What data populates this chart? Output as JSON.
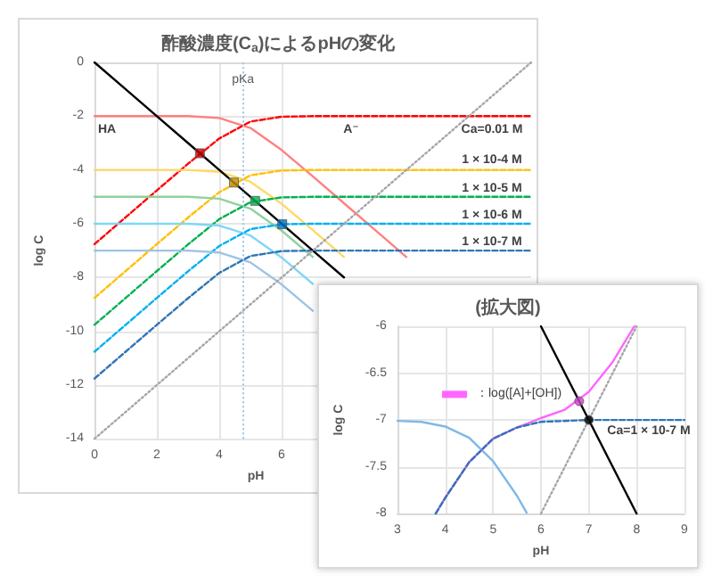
{
  "chart_data": [
    {
      "type": "line",
      "title": "酢酸濃度(C$_{a}$)によるpHの変化",
      "xlabel": "pH",
      "ylabel": "log C",
      "x": [
        0,
        1,
        2,
        3,
        4,
        5,
        6,
        7,
        8,
        9,
        10,
        11,
        12,
        13,
        14
      ],
      "xlim": [
        0,
        14
      ],
      "xticks": [
        0,
        2,
        4,
        6
      ],
      "ylim": [
        -14,
        0
      ],
      "yticks": [
        -14,
        -12,
        -10,
        -8,
        -6,
        -4,
        -2,
        0
      ],
      "grid": true,
      "legend": false,
      "marker": "none",
      "series": [
        {
          "color": "#ff8080",
          "line_style": "solid",
          "values": [
            -2,
            -2,
            -2,
            -2,
            -2.07,
            -2.44,
            -3.26,
            -4.24,
            -5.24,
            -6.24,
            -7.24,
            null,
            null,
            null,
            null
          ]
        },
        {
          "color": "#ff0000",
          "line_style": "dashed",
          "values": [
            -6.76,
            -5.76,
            -4.76,
            -3.77,
            -2.83,
            -2.2,
            -2.02,
            -2,
            -2,
            -2,
            -2,
            -2,
            -2,
            -2,
            -2
          ]
        },
        {
          "color": "#ffd966",
          "line_style": "solid",
          "values": [
            -4,
            -4,
            -4,
            -4,
            -4.07,
            -4.44,
            -5.26,
            -6.24,
            -7.24,
            null,
            null,
            null,
            null,
            null,
            null
          ]
        },
        {
          "color": "#ffc000",
          "line_style": "dashed",
          "values": [
            -8.76,
            -7.76,
            -6.76,
            -5.77,
            -4.83,
            -4.2,
            -4.02,
            -4,
            -4,
            -4,
            -4,
            -4,
            -4,
            -4,
            -4
          ]
        },
        {
          "color": "#8fd19e",
          "line_style": "solid",
          "values": [
            -5,
            -5,
            -5,
            -5,
            -5.07,
            -5.44,
            -6.26,
            -7.24,
            null,
            null,
            null,
            null,
            null,
            null,
            null
          ]
        },
        {
          "color": "#00b050",
          "line_style": "dashed",
          "values": [
            -9.76,
            -8.76,
            -7.76,
            -6.77,
            -5.83,
            -5.2,
            -5.02,
            -5,
            -5,
            -5,
            -5,
            -5,
            -5,
            -5,
            -5
          ]
        },
        {
          "color": "#7fd7f7",
          "line_style": "solid",
          "values": [
            -6,
            -6,
            -6,
            -6,
            -6.07,
            -6.44,
            -7.26,
            -8.24,
            null,
            null,
            null,
            null,
            null,
            null,
            null
          ]
        },
        {
          "color": "#00b0f0",
          "line_style": "dashed",
          "values": [
            -10.76,
            -9.76,
            -8.76,
            -7.77,
            -6.83,
            -6.2,
            -6.02,
            -6,
            -6,
            -6,
            -6,
            -6,
            -6,
            -6,
            -6
          ]
        },
        {
          "color": "#9dc3e6",
          "line_style": "solid",
          "values": [
            -7,
            -7,
            -7,
            -7,
            -7.07,
            -7.44,
            -8.26,
            -9.24,
            null,
            null,
            null,
            null,
            null,
            null,
            null
          ]
        },
        {
          "color": "#2e75b6",
          "line_style": "dashed",
          "values": [
            -11.76,
            -10.76,
            -9.76,
            -8.77,
            -7.83,
            -7.2,
            -7.02,
            -7,
            -7,
            -7,
            -7,
            -7,
            -7,
            -7,
            -7
          ]
        },
        {
          "color": "#000000",
          "line_style": "solid",
          "values": [
            0,
            -1,
            -2,
            -3,
            -4,
            -5,
            -6,
            -7,
            -8,
            null,
            null,
            null,
            null,
            null,
            null
          ]
        },
        {
          "color": "#a6a6a6",
          "line_style": "dotted",
          "values": [
            -14,
            -13,
            -12,
            -11,
            -10,
            -9,
            -8,
            -7,
            -6,
            -5,
            -4,
            -3,
            -2,
            -1,
            0
          ]
        },
        {
          "type": "scatter",
          "marker": "square",
          "x": [
            3.38,
            4.47,
            5.15,
            6.02
          ],
          "values": [
            -3.38,
            -4.47,
            -5.15,
            -6.02
          ],
          "colors": [
            "#c00000",
            "#bf9000",
            "#00b050",
            "#0070c0"
          ]
        }
      ],
      "ref_lines": [
        {
          "axis": "x",
          "value": 4.76,
          "label": "pKa",
          "color": "#9dc3e6",
          "line_style": "dotted"
        }
      ],
      "annotations": [
        "HA",
        "A⁻",
        "Ca=0.01 M",
        "1 × 10-4 M",
        "1 × 10-5 M",
        "1 × 10-6 M",
        "1 × 10-7 M"
      ]
    },
    {
      "type": "line",
      "title": "(拡大図)",
      "xlabel": "pH",
      "ylabel": "log C",
      "xlim": [
        3,
        9
      ],
      "xticks": [
        3,
        4,
        5,
        6,
        7,
        8,
        9
      ],
      "ylim": [
        -8,
        -6
      ],
      "yticks": [
        -8,
        -7.5,
        -7,
        -6.5,
        -6
      ],
      "grid": true,
      "legend": "left",
      "marker": "none",
      "series": [
        {
          "color": "#7fb8e6",
          "line_style": "solid",
          "x": [
            3,
            3.5,
            4,
            4.5,
            5,
            5.5,
            5.7
          ],
          "values": [
            -7.01,
            -7.02,
            -7.07,
            -7.19,
            -7.44,
            -7.81,
            -7.99
          ]
        },
        {
          "name": "：log([A]+[OH])",
          "color": "#ff66ff",
          "line_style": "solid",
          "x": [
            3.8,
            4,
            4.5,
            5,
            5.5,
            6,
            6.5,
            7,
            7.5,
            7.95
          ],
          "values": [
            -8,
            -7.83,
            -7.45,
            -7.2,
            -7.08,
            -6.98,
            -6.89,
            -6.7,
            -6.38,
            -6
          ]
        },
        {
          "color": "#2e75b6",
          "line_style": "dashed",
          "x": [
            3.8,
            4,
            4.5,
            5,
            5.5,
            6,
            7,
            8,
            9
          ],
          "values": [
            -8,
            -7.83,
            -7.45,
            -7.2,
            -7.08,
            -7.02,
            -7,
            -7,
            -7
          ]
        },
        {
          "color": "#000000",
          "line_style": "solid",
          "x": [
            6,
            8
          ],
          "values": [
            -6,
            -8
          ]
        },
        {
          "color": "#a6a6a6",
          "line_style": "dotted",
          "x": [
            6,
            8
          ],
          "values": [
            -8,
            -6
          ]
        },
        {
          "type": "scatter",
          "marker": "circle",
          "x": [
            6.8,
            7
          ],
          "values": [
            -6.8,
            -7
          ],
          "colors": [
            "#cc44cc",
            "#000000"
          ]
        }
      ],
      "annotations": [
        "Ca=1 × 10-7 M"
      ]
    }
  ]
}
